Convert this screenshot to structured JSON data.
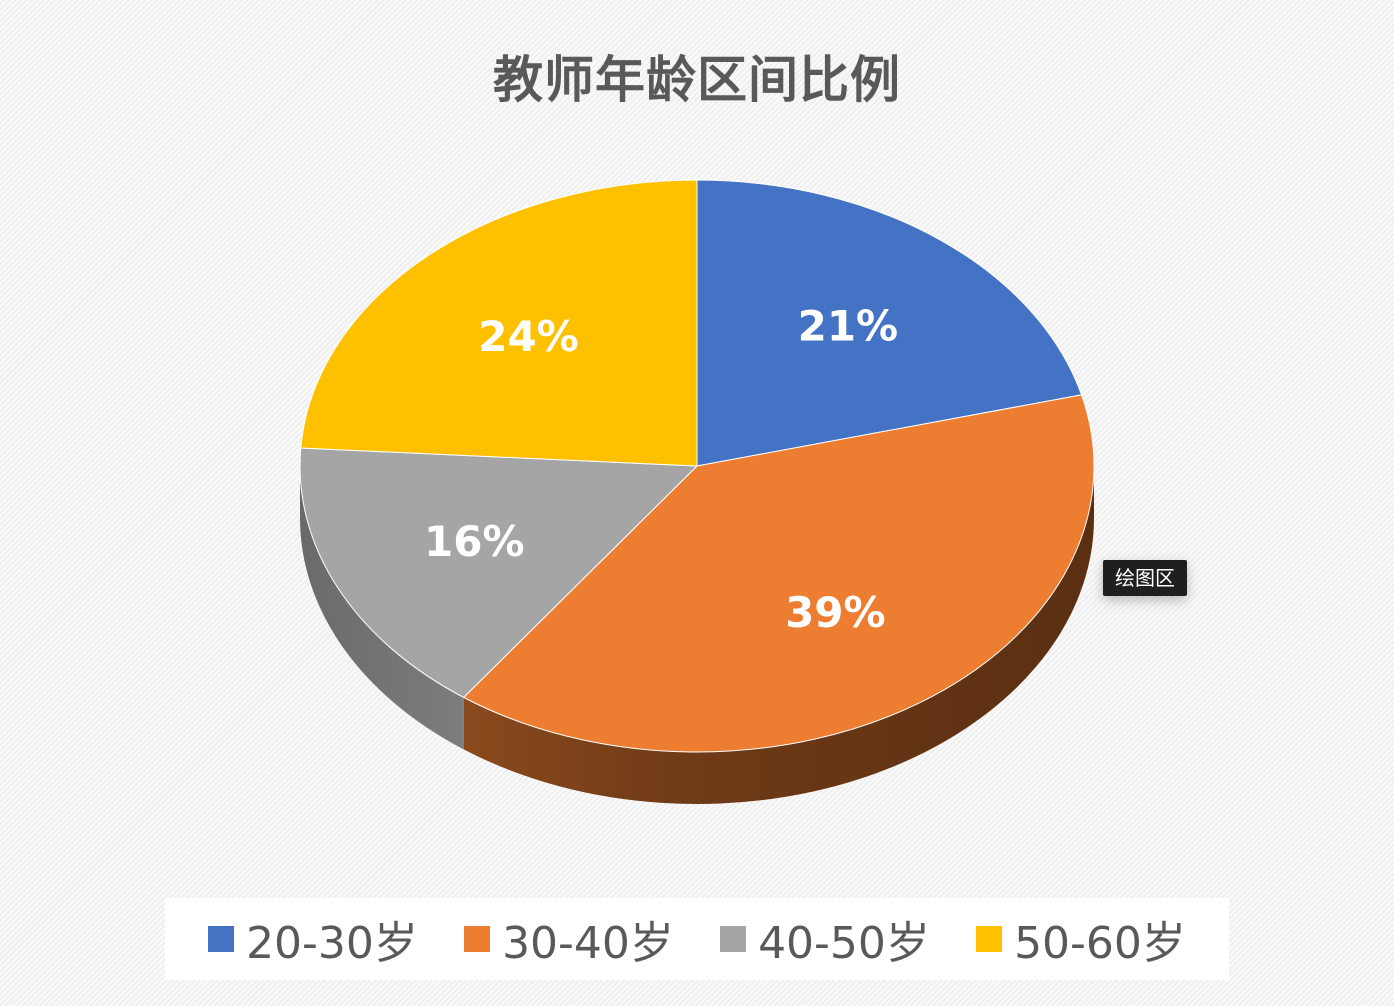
{
  "chart_data": {
    "type": "pie",
    "title": "教师年龄区间比例",
    "categories": [
      "20-30岁",
      "30-40岁",
      "40-50岁",
      "50-60岁"
    ],
    "values": [
      21,
      39,
      16,
      24
    ],
    "value_labels": [
      "21%",
      "39%",
      "16%",
      "24%"
    ],
    "colors": [
      "#4472C4",
      "#ED7D31",
      "#A5A5A5",
      "#FFC000"
    ],
    "legend_position": "bottom",
    "style": "3d-perspective"
  },
  "tooltip": {
    "text": "绘图区"
  }
}
